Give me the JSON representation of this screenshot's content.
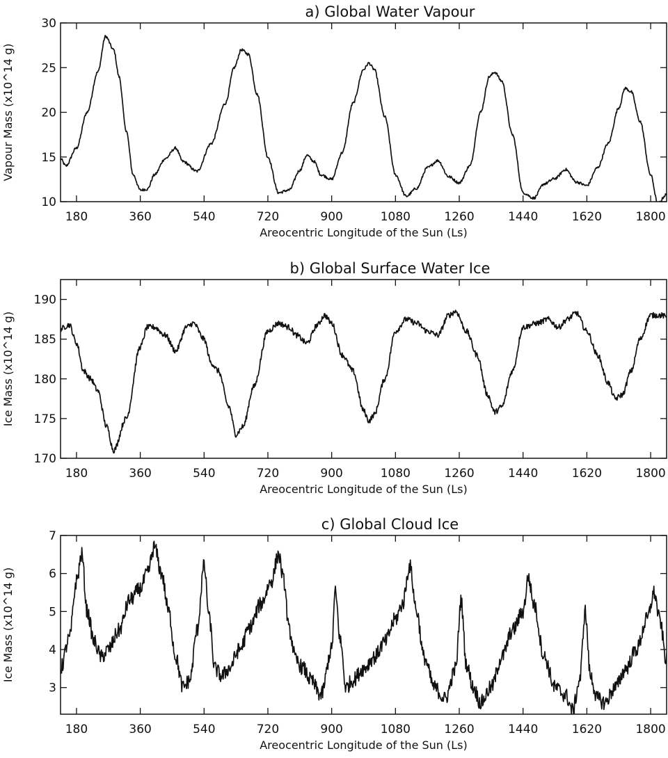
{
  "chart_data": [
    {
      "type": "line",
      "title": "a) Global Water Vapour",
      "xlabel": "Areocentric Longitude of the Sun (Ls)",
      "ylabel": "Vapour Mass (x10^14 g)",
      "xlim": [
        135,
        1845
      ],
      "ylim": [
        10,
        30
      ],
      "xticks": [
        180,
        360,
        540,
        720,
        900,
        1080,
        1260,
        1440,
        1620,
        1800
      ],
      "xtick_labels": [
        "180",
        "360",
        "540",
        "720",
        "900",
        "1080",
        "1260",
        "1440",
        "1620",
        "1800"
      ],
      "yticks": [
        10,
        15,
        20,
        25,
        30
      ],
      "ytick_labels": [
        "10",
        "15",
        "20",
        "25",
        "30"
      ],
      "grid": false,
      "noise": 0.15,
      "series": [
        {
          "x": [
            135,
            150,
            180,
            210,
            240,
            262,
            285,
            300,
            320,
            340,
            360,
            380,
            400,
            430,
            460,
            480,
            520,
            560,
            600,
            625,
            645,
            665,
            690,
            720,
            750,
            780,
            810,
            830,
            850,
            870,
            900,
            930,
            960,
            990,
            1005,
            1020,
            1050,
            1080,
            1110,
            1140,
            1170,
            1200,
            1230,
            1260,
            1290,
            1320,
            1345,
            1360,
            1380,
            1410,
            1440,
            1470,
            1500,
            1530,
            1560,
            1590,
            1620,
            1650,
            1680,
            1710,
            1728,
            1745,
            1770,
            1800,
            1820,
            1845
          ],
          "y": [
            14.8,
            14.0,
            16.0,
            20.0,
            24.5,
            28.5,
            27.0,
            24.0,
            18.0,
            13.0,
            11.3,
            11.4,
            13.0,
            14.8,
            16.0,
            14.5,
            13.4,
            16.5,
            21.0,
            25.0,
            27.0,
            26.5,
            22.0,
            15.0,
            11.0,
            11.3,
            13.5,
            15.2,
            14.5,
            13.0,
            12.5,
            15.5,
            21.0,
            24.8,
            25.5,
            24.8,
            19.5,
            13.0,
            10.6,
            11.5,
            13.8,
            14.6,
            12.8,
            12.1,
            14.0,
            20.0,
            24.0,
            24.5,
            23.5,
            17.5,
            11.0,
            10.4,
            12.0,
            12.6,
            13.6,
            12.2,
            11.8,
            13.8,
            16.5,
            20.5,
            22.7,
            22.3,
            19.0,
            13.0,
            9.8,
            10.8
          ]
        }
      ]
    },
    {
      "type": "line",
      "title": "b) Global Surface Water Ice",
      "xlabel": "Areocentric Longitude of the Sun (Ls)",
      "ylabel": "Ice Mass (x10^14 g)",
      "xlim": [
        135,
        1845
      ],
      "ylim": [
        170,
        192.5
      ],
      "xticks": [
        180,
        360,
        540,
        720,
        900,
        1080,
        1260,
        1440,
        1620,
        1800
      ],
      "xtick_labels": [
        "180",
        "360",
        "540",
        "720",
        "900",
        "1080",
        "1260",
        "1440",
        "1620",
        "1800"
      ],
      "yticks": [
        170,
        175,
        180,
        185,
        190
      ],
      "ytick_labels": [
        "170",
        "175",
        "180",
        "185",
        "190"
      ],
      "grid": false,
      "noise": 0.35,
      "series": [
        {
          "x": [
            135,
            160,
            180,
            200,
            220,
            240,
            265,
            285,
            320,
            360,
            380,
            400,
            430,
            460,
            490,
            510,
            540,
            560,
            580,
            610,
            630,
            650,
            680,
            720,
            750,
            780,
            800,
            830,
            860,
            880,
            900,
            930,
            960,
            990,
            1005,
            1020,
            1050,
            1080,
            1110,
            1140,
            1170,
            1200,
            1230,
            1250,
            1280,
            1310,
            1340,
            1360,
            1380,
            1410,
            1440,
            1480,
            1510,
            1540,
            1565,
            1590,
            1620,
            1650,
            1680,
            1700,
            1720,
            1745,
            1770,
            1800,
            1830,
            1845
          ],
          "y": [
            186.3,
            186.8,
            184.5,
            181.0,
            180.0,
            178.5,
            174.0,
            171.0,
            175.0,
            184.0,
            186.5,
            186.5,
            185.5,
            183.5,
            186.5,
            187.0,
            185.0,
            182.0,
            181.0,
            176.5,
            173.0,
            174.0,
            179.0,
            186.0,
            187.0,
            186.5,
            185.5,
            184.5,
            186.8,
            188.0,
            187.0,
            183.0,
            181.0,
            176.0,
            174.7,
            175.5,
            180.0,
            186.0,
            187.5,
            187.0,
            186.0,
            185.5,
            188.0,
            188.5,
            186.0,
            183.0,
            178.0,
            175.8,
            176.5,
            181.0,
            186.5,
            187.0,
            187.5,
            186.5,
            187.5,
            188.3,
            186.0,
            183.0,
            179.5,
            177.5,
            178.0,
            181.0,
            185.0,
            188.0,
            188.0,
            187.8
          ]
        }
      ]
    },
    {
      "type": "line",
      "title": "c) Global Cloud Ice",
      "xlabel": "Areocentric Longitude of the Sun (Ls)",
      "ylabel": "Ice Mass (x10^14 g)",
      "xlim": [
        135,
        1845
      ],
      "ylim": [
        2.3,
        7
      ],
      "xticks": [
        180,
        360,
        540,
        720,
        900,
        1080,
        1260,
        1440,
        1620,
        1800
      ],
      "xtick_labels": [
        "180",
        "360",
        "540",
        "720",
        "900",
        "1080",
        "1260",
        "1440",
        "1620",
        "1800"
      ],
      "yticks": [
        3,
        4,
        5,
        6,
        7
      ],
      "ytick_labels": [
        "3",
        "4",
        "5",
        "6",
        "7"
      ],
      "grid": false,
      "noise": 0.2,
      "series": [
        {
          "x": [
            135,
            160,
            180,
            195,
            210,
            230,
            250,
            270,
            300,
            330,
            360,
            380,
            400,
            420,
            440,
            460,
            480,
            500,
            520,
            540,
            555,
            570,
            590,
            610,
            640,
            670,
            700,
            730,
            750,
            765,
            780,
            800,
            820,
            840,
            870,
            900,
            910,
            925,
            940,
            960,
            990,
            1020,
            1050,
            1080,
            1100,
            1120,
            1140,
            1160,
            1190,
            1220,
            1250,
            1265,
            1280,
            1300,
            1320,
            1350,
            1380,
            1410,
            1440,
            1455,
            1470,
            1500,
            1530,
            1560,
            1580,
            1600,
            1615,
            1630,
            1650,
            1670,
            1700,
            1730,
            1760,
            1790,
            1810,
            1825,
            1845
          ],
          "y": [
            3.5,
            4.3,
            5.8,
            6.5,
            5.0,
            4.2,
            3.8,
            4.0,
            4.5,
            5.3,
            5.6,
            6.0,
            6.7,
            6.0,
            5.0,
            3.8,
            3.0,
            3.2,
            4.5,
            6.2,
            4.8,
            3.5,
            3.3,
            3.5,
            4.0,
            4.6,
            5.2,
            5.8,
            6.5,
            5.8,
            4.5,
            3.7,
            3.5,
            3.2,
            2.8,
            4.0,
            5.5,
            4.2,
            3.0,
            3.2,
            3.5,
            3.8,
            4.2,
            4.8,
            5.2,
            6.2,
            5.0,
            3.8,
            3.0,
            2.7,
            3.5,
            5.3,
            3.6,
            3.0,
            2.6,
            3.0,
            3.8,
            4.5,
            5.0,
            5.9,
            5.2,
            3.8,
            3.0,
            2.8,
            2.4,
            3.2,
            5.0,
            3.3,
            2.7,
            2.6,
            3.0,
            3.5,
            4.0,
            4.8,
            5.5,
            4.8,
            3.7
          ]
        }
      ]
    }
  ]
}
